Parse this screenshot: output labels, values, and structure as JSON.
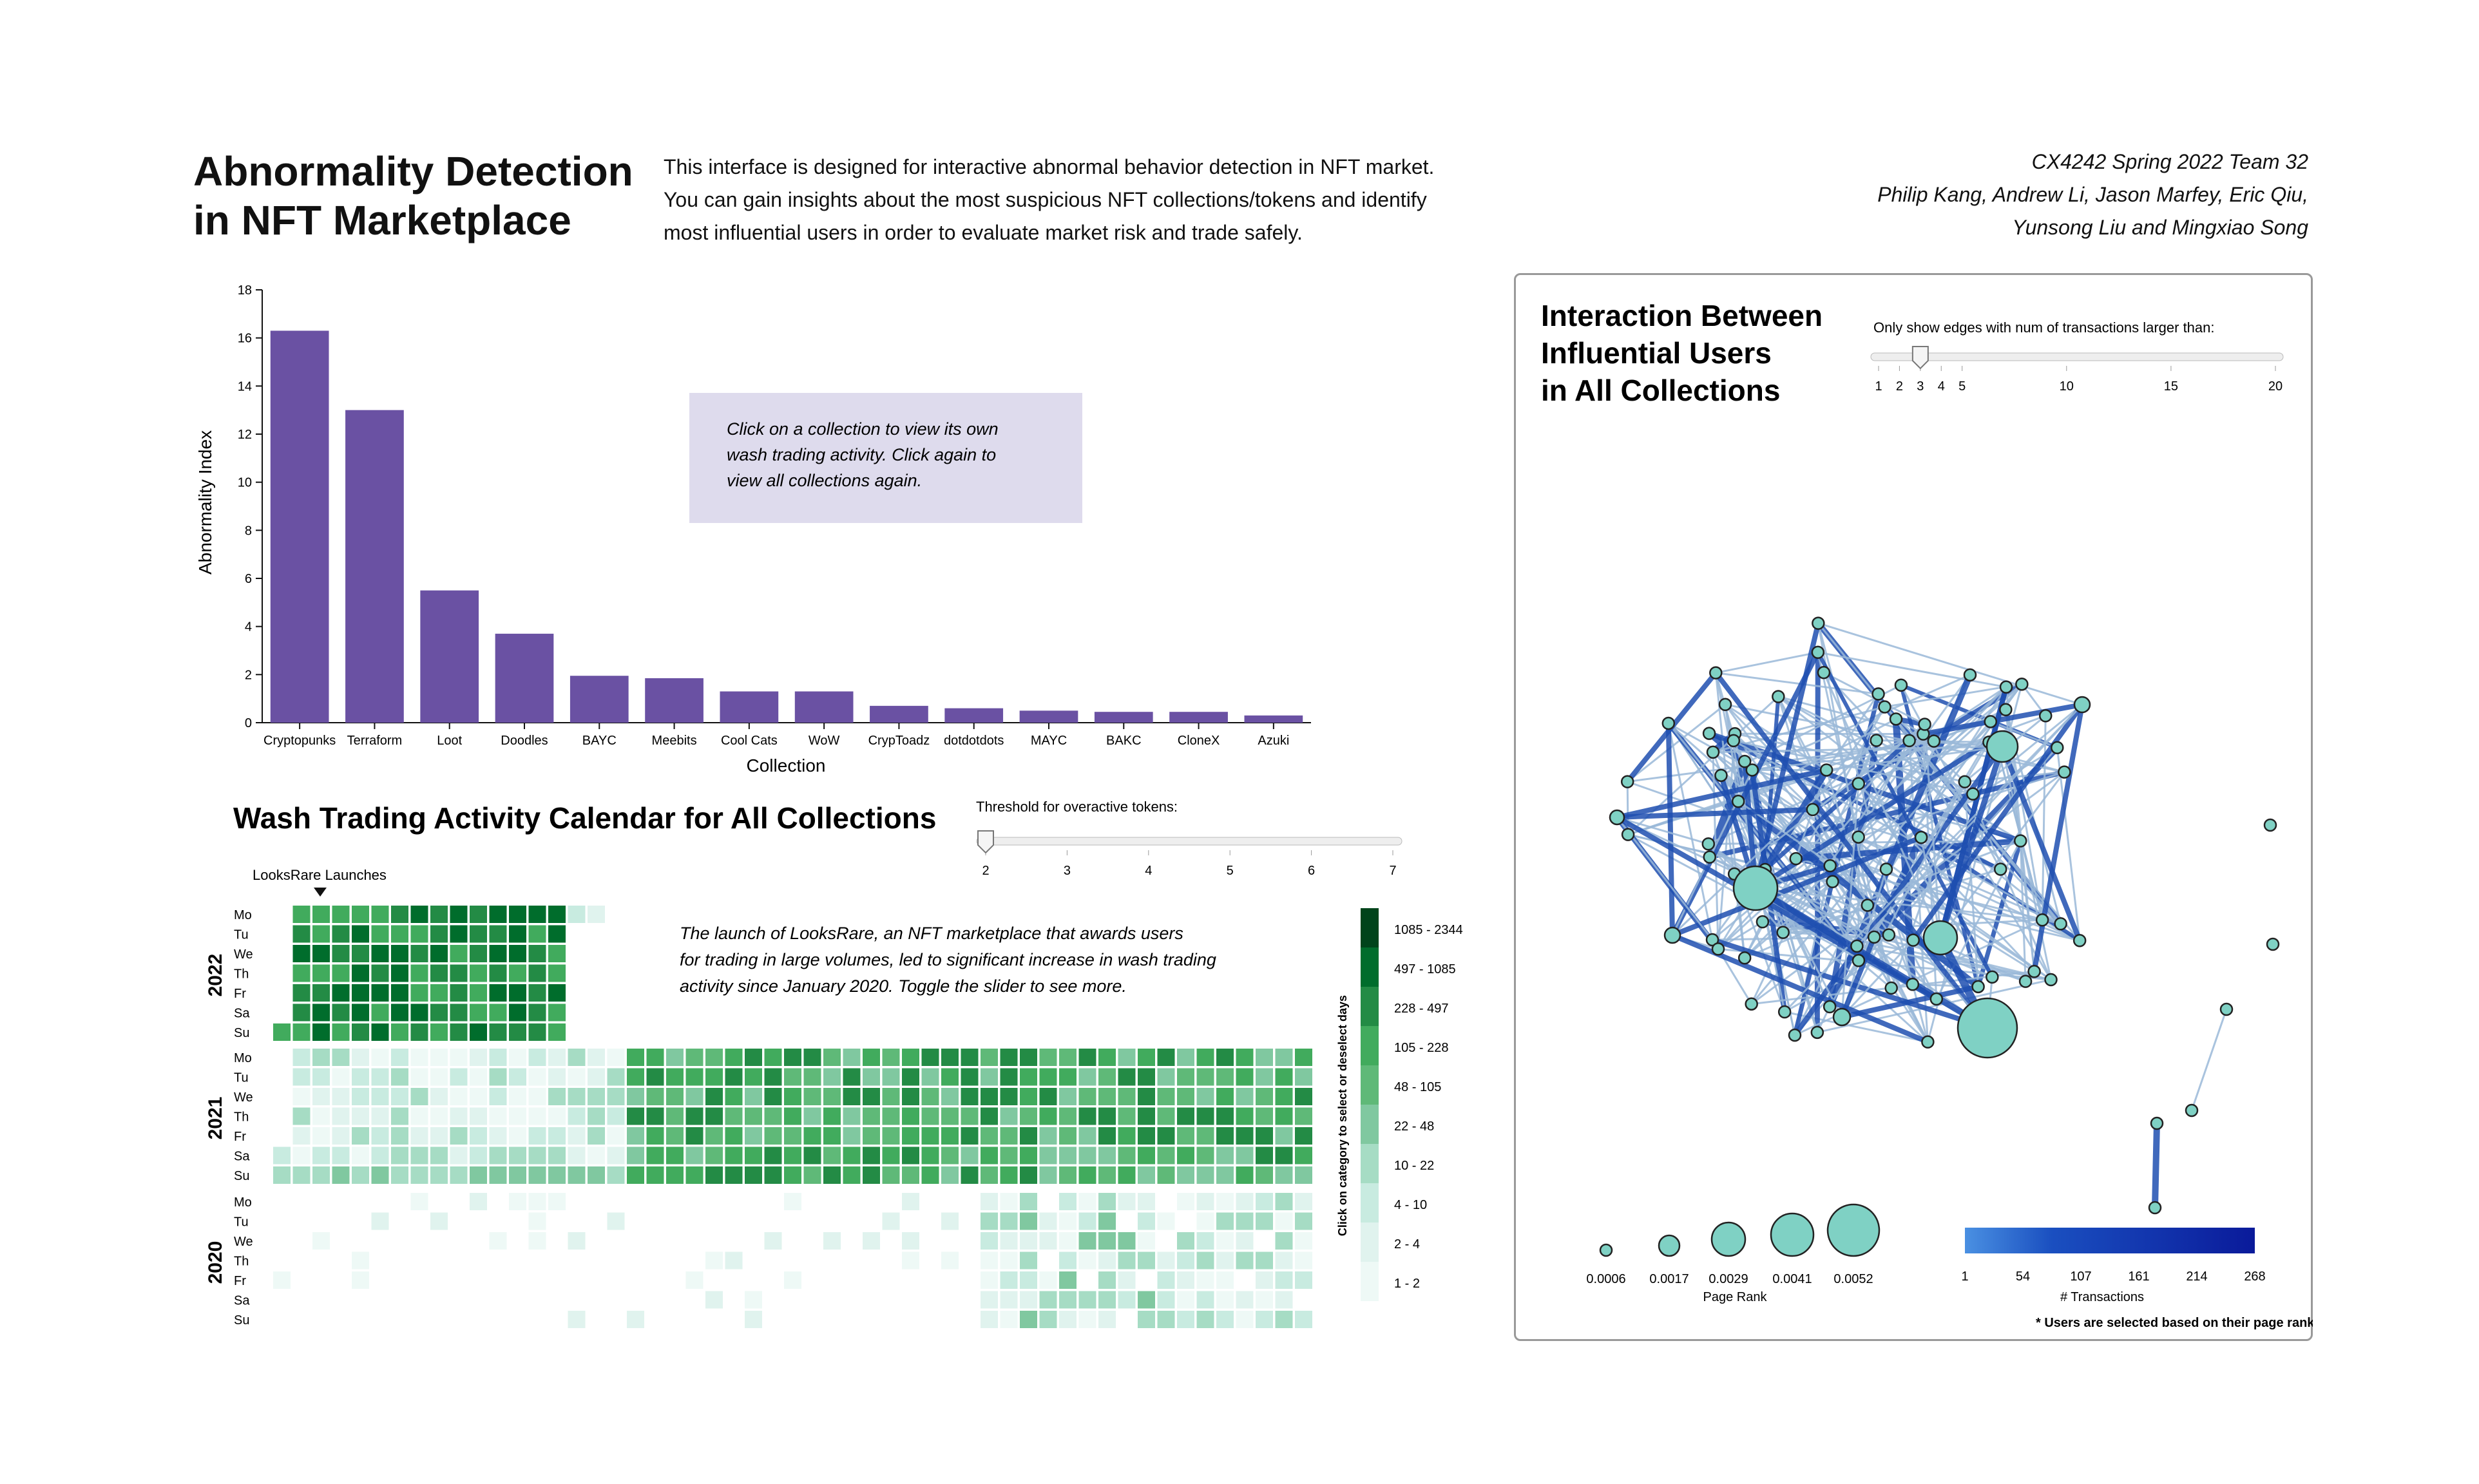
{
  "header": {
    "title_line1": "Abnormality Detection",
    "title_line2": "in NFT Marketplace",
    "intro_line1": "This interface is designed for interactive abnormal behavior detection in NFT market.",
    "intro_line2": "You can gain insights about the most suspicious NFT collections/tokens and identify",
    "intro_line3": "most influential users in order to evaluate market risk and trade safely.",
    "credit_line1": "CX4242 Spring 2022 Team 32",
    "credit_line2": "Philip Kang, Andrew Li, Jason Marfey, Eric Qiu,",
    "credit_line3": "Yunsong Liu and Mingxiao Song"
  },
  "bar_chart": {
    "tooltip_line1": "Click on a collection to view its own",
    "tooltip_line2": "wash trading activity. Click again to",
    "tooltip_line3": "view all collections again."
  },
  "chart_data": {
    "type": "bar",
    "title": "",
    "xlabel": "Collection",
    "ylabel": "Abnormality Index",
    "ylim": [
      0,
      18
    ],
    "yticks": [
      0,
      2,
      4,
      6,
      8,
      10,
      12,
      14,
      16,
      18
    ],
    "categories": [
      "Cryptopunks",
      "Terraform",
      "Loot",
      "Doodles",
      "BAYC",
      "Meebits",
      "Cool Cats",
      "WoW",
      "CrypToadz",
      "dotdotdots",
      "MAYC",
      "BAKC",
      "CloneX",
      "Azuki"
    ],
    "values": [
      16.3,
      13.0,
      5.5,
      3.7,
      1.95,
      1.85,
      1.3,
      1.3,
      0.7,
      0.6,
      0.5,
      0.45,
      0.45,
      0.3
    ],
    "color": "#6a51a3",
    "grid": false
  },
  "calendar": {
    "title": "Wash Trading Activity Calendar for All Collections",
    "slider_label": "Threshold for overactive tokens:",
    "slider_ticks": [
      "2",
      "3",
      "4",
      "5",
      "6",
      "7"
    ],
    "slider_value": 2,
    "marker_label": "LooksRare Launches",
    "years": [
      "2022",
      "2021",
      "2020"
    ],
    "days": [
      "Mo",
      "Tu",
      "We",
      "Th",
      "Fr",
      "Sa",
      "Su"
    ],
    "note_line1": "The launch of LooksRare, an NFT marketplace that awards users",
    "note_line2": "for trading in large volumes, led to significant increase in wash trading",
    "note_line3": "activity since January 2020. Toggle the slider to see more.",
    "legend_title": "Click on category to select or deselect days",
    "legend": [
      "1085 - 2344",
      "497 - 1085",
      "228 - 497",
      "105 - 228",
      "48 - 105",
      "22 - 48",
      "10 - 22",
      "4 - 10",
      "2 - 4",
      "1 - 2"
    ],
    "legend_colors": [
      "#00441b",
      "#006d2c",
      "#238b45",
      "#41ab5d",
      "#5fb978",
      "#80c8a0",
      "#a6dcc4",
      "#c8ebe0",
      "#e0f3ee",
      "#eef9f6"
    ]
  },
  "network": {
    "title_line1": "Interaction Between",
    "title_line2": "Influential Users",
    "title_line3": "in All Collections",
    "slider_label": "Only show edges with num of transactions larger than:",
    "slider_ticks": [
      "1",
      "2",
      "3",
      "4",
      "5",
      "10",
      "15",
      "20"
    ],
    "slider_value": 3,
    "size_legend": [
      "0.0006",
      "0.0017",
      "0.0029",
      "0.0041",
      "0.0052"
    ],
    "size_legend_title": "Page Rank",
    "color_legend": [
      "1",
      "54",
      "107",
      "161",
      "214",
      "268"
    ],
    "color_legend_title": "# Transactions",
    "footnote": "* Users are selected based on their page rank",
    "node_color": "#7fd1c4",
    "edge_color_light": "#9ab8d8",
    "edge_color_dark": "#08306b"
  }
}
